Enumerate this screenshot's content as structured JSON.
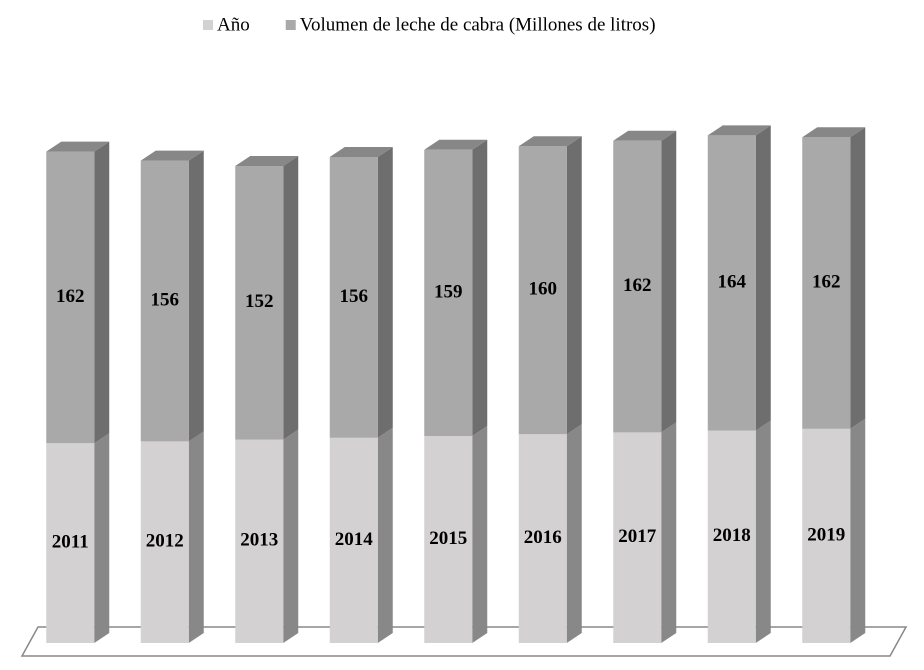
{
  "chart_data": {
    "type": "stacked-bar-3d",
    "categories": [
      "2011",
      "2012",
      "2013",
      "2014",
      "2015",
      "2016",
      "2017",
      "2018",
      "2019"
    ],
    "series": [
      {
        "name": "Año",
        "color": "#d3d1d2",
        "values": [
          2011,
          2012,
          2013,
          2014,
          2015,
          2016,
          2017,
          2018,
          2019
        ]
      },
      {
        "name": "Volumen de leche de cabra (Millones de litros)",
        "color": "#a9a9a9",
        "values": [
          162,
          156,
          152,
          156,
          159,
          160,
          162,
          164,
          162
        ]
      }
    ],
    "ylim": [
      1900,
      2200
    ],
    "legend": "top"
  }
}
